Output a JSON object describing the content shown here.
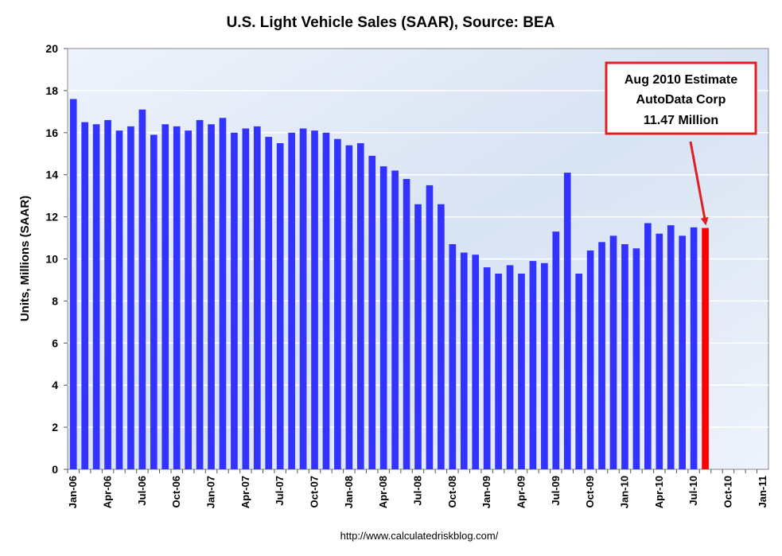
{
  "chart_data": {
    "type": "bar",
    "title": "U.S. Light Vehicle Sales (SAAR), Source: BEA",
    "ylabel": "Units, Millions (SAAR)",
    "xlabel": "",
    "ylim": [
      0,
      20
    ],
    "yticks": [
      0,
      2,
      4,
      6,
      8,
      10,
      12,
      14,
      16,
      18,
      20
    ],
    "grid": true,
    "months": [
      "Jan-06",
      "Feb-06",
      "Mar-06",
      "Apr-06",
      "May-06",
      "Jun-06",
      "Jul-06",
      "Aug-06",
      "Sep-06",
      "Oct-06",
      "Nov-06",
      "Dec-06",
      "Jan-07",
      "Feb-07",
      "Mar-07",
      "Apr-07",
      "May-07",
      "Jun-07",
      "Jul-07",
      "Aug-07",
      "Sep-07",
      "Oct-07",
      "Nov-07",
      "Dec-07",
      "Jan-08",
      "Feb-08",
      "Mar-08",
      "Apr-08",
      "May-08",
      "Jun-08",
      "Jul-08",
      "Aug-08",
      "Sep-08",
      "Oct-08",
      "Nov-08",
      "Dec-08",
      "Jan-09",
      "Feb-09",
      "Mar-09",
      "Apr-09",
      "May-09",
      "Jun-09",
      "Jul-09",
      "Aug-09",
      "Sep-09",
      "Oct-09",
      "Nov-09",
      "Dec-09",
      "Jan-10",
      "Feb-10",
      "Mar-10",
      "Apr-10",
      "May-10",
      "Jun-10",
      "Jul-10",
      "Aug-10",
      "Sep-10",
      "Oct-10",
      "Nov-10",
      "Dec-10",
      "Jan-11"
    ],
    "tick_labels": [
      "Jan-06",
      "Apr-06",
      "Jul-06",
      "Oct-06",
      "Jan-07",
      "Apr-07",
      "Jul-07",
      "Oct-07",
      "Jan-08",
      "Apr-08",
      "Jul-08",
      "Oct-08",
      "Jan-09",
      "Apr-09",
      "Jul-09",
      "Oct-09",
      "Jan-10",
      "Apr-10",
      "Jul-10",
      "Oct-10",
      "Jan-11"
    ],
    "series": [
      {
        "values": [
          17.6,
          16.5,
          16.4,
          16.6,
          16.1,
          16.3,
          17.1,
          15.9,
          16.4,
          16.3,
          16.1,
          16.6,
          16.4,
          16.7,
          16.0,
          16.2,
          16.3,
          15.8,
          15.5,
          16.0,
          16.2,
          16.1,
          16.0,
          15.7,
          15.4,
          15.5,
          14.9,
          14.4,
          14.2,
          13.8,
          12.6,
          13.5,
          12.6,
          10.7,
          10.3,
          10.2,
          9.6,
          9.3,
          9.7,
          9.3,
          9.9,
          9.8,
          11.3,
          14.1,
          9.3,
          10.4,
          10.8,
          11.1,
          10.7,
          10.5,
          11.7,
          11.2,
          11.6,
          11.1,
          11.5,
          11.47
        ]
      }
    ],
    "colors": {
      "bar": "#3333ff",
      "highlight_bar": "#ff0000",
      "plot_bg_light": "#eef3fb",
      "plot_bg_dark": "#d8e3f3",
      "grid": "#ffffff",
      "annotation_border": "#e02020",
      "arrow": "#e02020"
    },
    "annotation": {
      "lines": [
        "Aug 2010 Estimate",
        "AutoData  Corp",
        "11.47 Million"
      ],
      "target_month": "Aug-10"
    },
    "source": "http://www.calculatedriskblog.com/"
  }
}
